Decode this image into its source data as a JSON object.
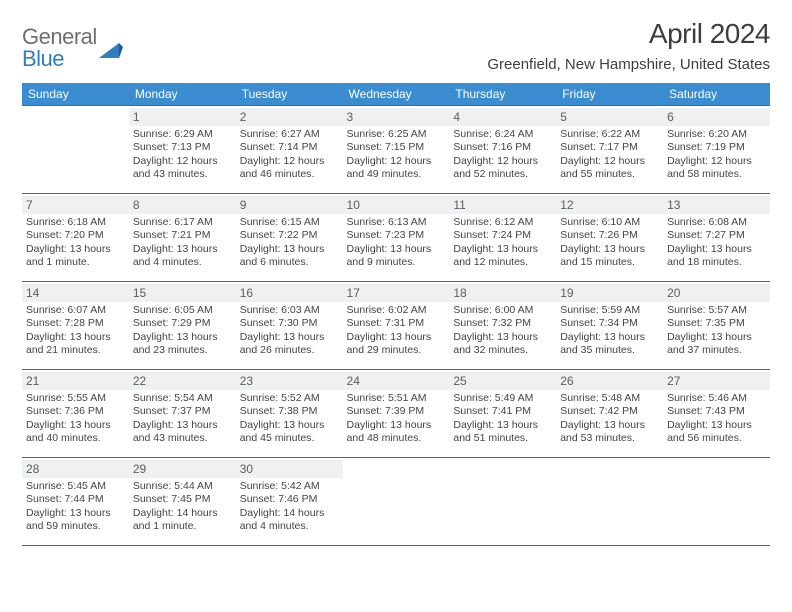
{
  "brand": {
    "line1": "General",
    "line2": "Blue"
  },
  "title": "April 2024",
  "location": "Greenfield, New Hampshire, United States",
  "weekday_headers": [
    "Sunday",
    "Monday",
    "Tuesday",
    "Wednesday",
    "Thursday",
    "Friday",
    "Saturday"
  ],
  "header_bg": "#3a8dd0",
  "header_fg": "#ffffff",
  "rule_color": "#2f6fa8",
  "daynum_bg": "#eef0f1",
  "weeks": [
    [
      null,
      {
        "n": "1",
        "sunrise": "6:29 AM",
        "sunset": "7:13 PM",
        "daylight": "12 hours and 43 minutes."
      },
      {
        "n": "2",
        "sunrise": "6:27 AM",
        "sunset": "7:14 PM",
        "daylight": "12 hours and 46 minutes."
      },
      {
        "n": "3",
        "sunrise": "6:25 AM",
        "sunset": "7:15 PM",
        "daylight": "12 hours and 49 minutes."
      },
      {
        "n": "4",
        "sunrise": "6:24 AM",
        "sunset": "7:16 PM",
        "daylight": "12 hours and 52 minutes."
      },
      {
        "n": "5",
        "sunrise": "6:22 AM",
        "sunset": "7:17 PM",
        "daylight": "12 hours and 55 minutes."
      },
      {
        "n": "6",
        "sunrise": "6:20 AM",
        "sunset": "7:19 PM",
        "daylight": "12 hours and 58 minutes."
      }
    ],
    [
      {
        "n": "7",
        "sunrise": "6:18 AM",
        "sunset": "7:20 PM",
        "daylight": "13 hours and 1 minute."
      },
      {
        "n": "8",
        "sunrise": "6:17 AM",
        "sunset": "7:21 PM",
        "daylight": "13 hours and 4 minutes."
      },
      {
        "n": "9",
        "sunrise": "6:15 AM",
        "sunset": "7:22 PM",
        "daylight": "13 hours and 6 minutes."
      },
      {
        "n": "10",
        "sunrise": "6:13 AM",
        "sunset": "7:23 PM",
        "daylight": "13 hours and 9 minutes."
      },
      {
        "n": "11",
        "sunrise": "6:12 AM",
        "sunset": "7:24 PM",
        "daylight": "13 hours and 12 minutes."
      },
      {
        "n": "12",
        "sunrise": "6:10 AM",
        "sunset": "7:26 PM",
        "daylight": "13 hours and 15 minutes."
      },
      {
        "n": "13",
        "sunrise": "6:08 AM",
        "sunset": "7:27 PM",
        "daylight": "13 hours and 18 minutes."
      }
    ],
    [
      {
        "n": "14",
        "sunrise": "6:07 AM",
        "sunset": "7:28 PM",
        "daylight": "13 hours and 21 minutes."
      },
      {
        "n": "15",
        "sunrise": "6:05 AM",
        "sunset": "7:29 PM",
        "daylight": "13 hours and 23 minutes."
      },
      {
        "n": "16",
        "sunrise": "6:03 AM",
        "sunset": "7:30 PM",
        "daylight": "13 hours and 26 minutes."
      },
      {
        "n": "17",
        "sunrise": "6:02 AM",
        "sunset": "7:31 PM",
        "daylight": "13 hours and 29 minutes."
      },
      {
        "n": "18",
        "sunrise": "6:00 AM",
        "sunset": "7:32 PM",
        "daylight": "13 hours and 32 minutes."
      },
      {
        "n": "19",
        "sunrise": "5:59 AM",
        "sunset": "7:34 PM",
        "daylight": "13 hours and 35 minutes."
      },
      {
        "n": "20",
        "sunrise": "5:57 AM",
        "sunset": "7:35 PM",
        "daylight": "13 hours and 37 minutes."
      }
    ],
    [
      {
        "n": "21",
        "sunrise": "5:55 AM",
        "sunset": "7:36 PM",
        "daylight": "13 hours and 40 minutes."
      },
      {
        "n": "22",
        "sunrise": "5:54 AM",
        "sunset": "7:37 PM",
        "daylight": "13 hours and 43 minutes."
      },
      {
        "n": "23",
        "sunrise": "5:52 AM",
        "sunset": "7:38 PM",
        "daylight": "13 hours and 45 minutes."
      },
      {
        "n": "24",
        "sunrise": "5:51 AM",
        "sunset": "7:39 PM",
        "daylight": "13 hours and 48 minutes."
      },
      {
        "n": "25",
        "sunrise": "5:49 AM",
        "sunset": "7:41 PM",
        "daylight": "13 hours and 51 minutes."
      },
      {
        "n": "26",
        "sunrise": "5:48 AM",
        "sunset": "7:42 PM",
        "daylight": "13 hours and 53 minutes."
      },
      {
        "n": "27",
        "sunrise": "5:46 AM",
        "sunset": "7:43 PM",
        "daylight": "13 hours and 56 minutes."
      }
    ],
    [
      {
        "n": "28",
        "sunrise": "5:45 AM",
        "sunset": "7:44 PM",
        "daylight": "13 hours and 59 minutes."
      },
      {
        "n": "29",
        "sunrise": "5:44 AM",
        "sunset": "7:45 PM",
        "daylight": "14 hours and 1 minute."
      },
      {
        "n": "30",
        "sunrise": "5:42 AM",
        "sunset": "7:46 PM",
        "daylight": "14 hours and 4 minutes."
      },
      null,
      null,
      null,
      null
    ]
  ],
  "labels": {
    "sunrise": "Sunrise:",
    "sunset": "Sunset:",
    "daylight": "Daylight:"
  }
}
